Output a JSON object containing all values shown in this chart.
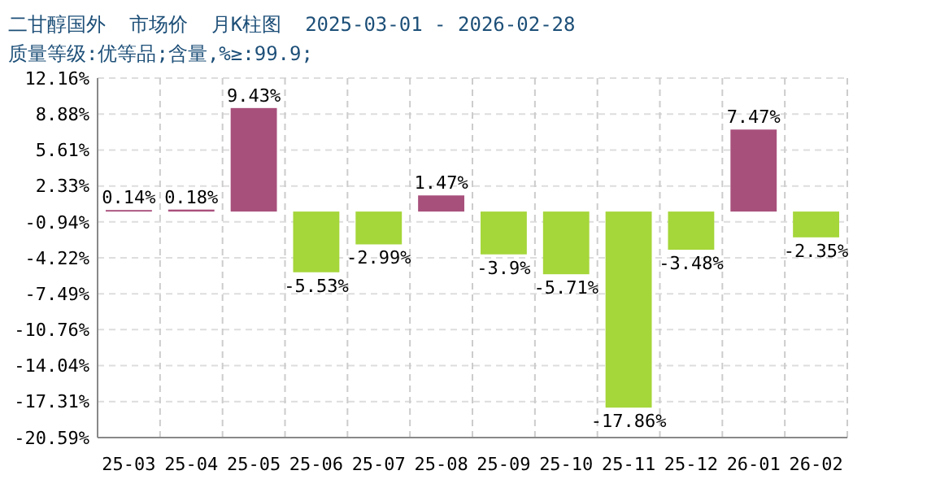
{
  "chart_data": {
    "type": "bar",
    "title": "二甘醇国外  市场价  月K柱图  2025-03-01 - 2026-02-28",
    "subtitle": "质量等级:优等品;含量,%≥:99.9;",
    "categories": [
      "25-03",
      "25-04",
      "25-05",
      "25-06",
      "25-07",
      "25-08",
      "25-09",
      "25-10",
      "25-11",
      "25-12",
      "26-01",
      "26-02"
    ],
    "values": [
      0.14,
      0.18,
      9.43,
      -5.53,
      -2.99,
      1.47,
      -3.9,
      -5.71,
      -17.86,
      -3.48,
      7.47,
      -2.35
    ],
    "colors": [
      "#a8507c",
      "#a8507c",
      "#a8507c",
      "#a5d63a",
      "#a5d63a",
      "#a8507c",
      "#a5d63a",
      "#a5d63a",
      "#a5d63a",
      "#a5d63a",
      "#a8507c",
      "#a5d63a"
    ],
    "value_labels": [
      "0.14%",
      "0.18%",
      "9.43%",
      "-5.53%",
      "-2.99%",
      "1.47%",
      "-3.9%",
      "-5.71%",
      "-17.86%",
      "-3.48%",
      "7.47%",
      "-2.35%"
    ],
    "ylim": [
      -20.59,
      12.16
    ],
    "yticks": [
      {
        "value": 12.16,
        "label": "12.16%"
      },
      {
        "value": 8.88,
        "label": "8.88%"
      },
      {
        "value": 5.61,
        "label": "5.61%"
      },
      {
        "value": 2.33,
        "label": "2.33%"
      },
      {
        "value": -0.94,
        "label": "-0.94%"
      },
      {
        "value": -4.22,
        "label": "-4.22%"
      },
      {
        "value": -7.49,
        "label": "-7.49%"
      },
      {
        "value": -10.76,
        "label": "-10.76%"
      },
      {
        "value": -14.04,
        "label": "-14.04%"
      },
      {
        "value": -17.31,
        "label": "-17.31%"
      },
      {
        "value": -20.59,
        "label": "-20.59%"
      }
    ],
    "grid": true
  }
}
